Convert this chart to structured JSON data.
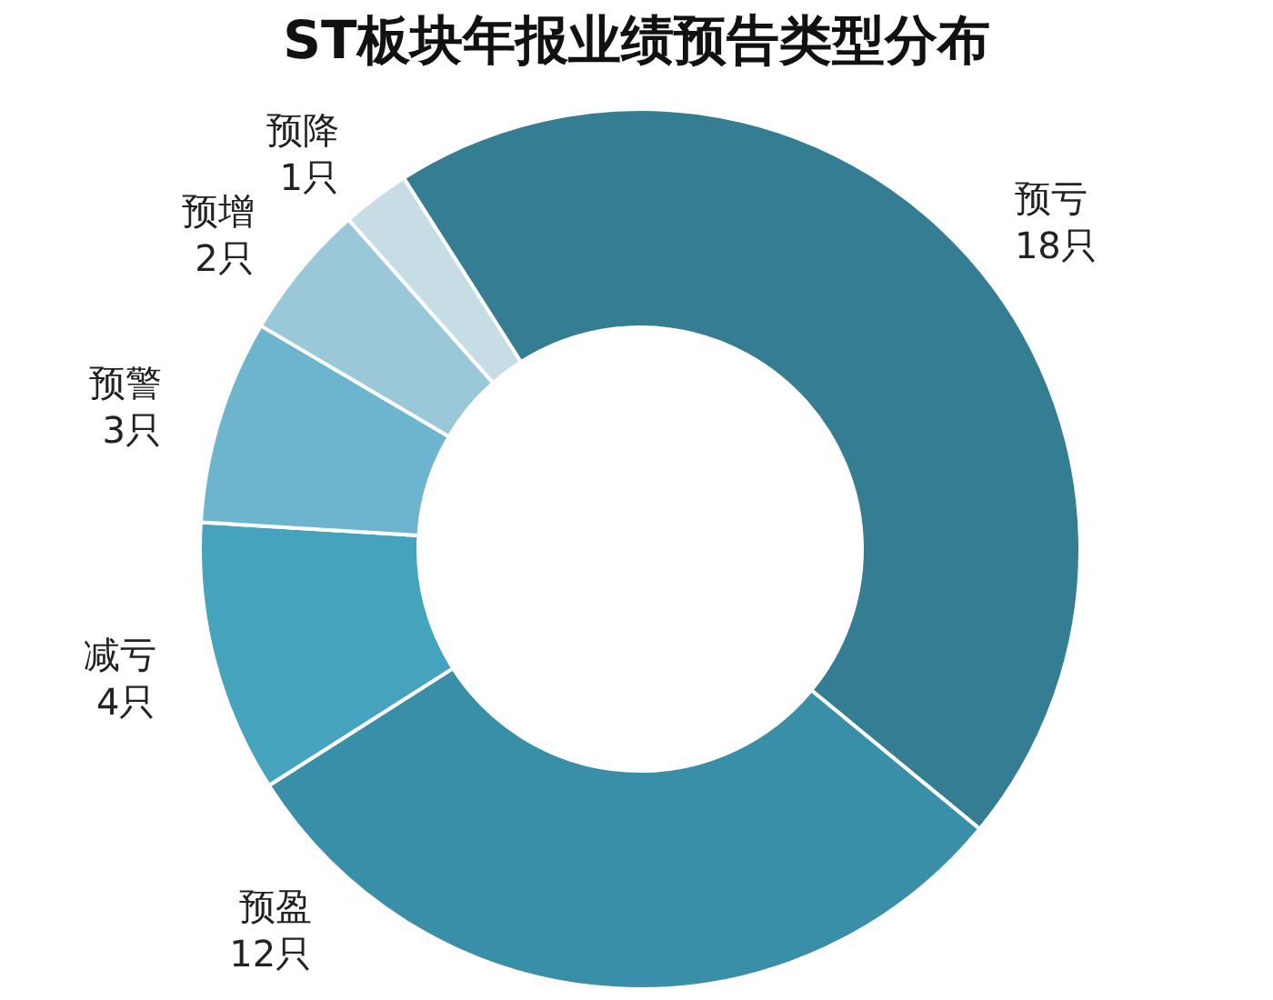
{
  "chart_data": {
    "type": "donut",
    "title": "ST板块年报业绩预告类型分布",
    "categories": [
      "预亏",
      "预盈",
      "减亏",
      "预警",
      "预增",
      "预降"
    ],
    "values": [
      18,
      12,
      4,
      3,
      2,
      1
    ],
    "colors": [
      "#347d93",
      "#3a8fa8",
      "#46a3bd",
      "#6db5cf",
      "#9ac8d9",
      "#c6dde6"
    ],
    "value_labels": [
      "18只",
      "12只",
      "4只",
      "3只",
      "2只",
      "1只"
    ]
  }
}
